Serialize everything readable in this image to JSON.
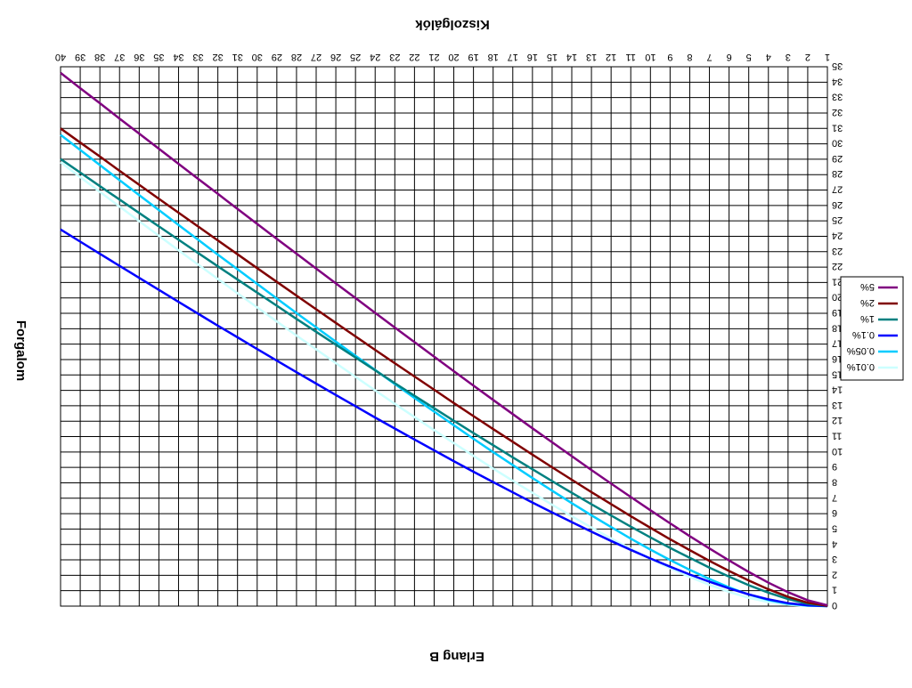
{
  "chart_data": {
    "type": "line",
    "title": "Erlang B",
    "xlabel": "Kiszolgálók",
    "ylabel": "Forgalom",
    "xlim": [
      1,
      40
    ],
    "ylim": [
      0,
      35
    ],
    "x_ticks": [
      1,
      2,
      3,
      4,
      5,
      6,
      7,
      8,
      9,
      10,
      11,
      12,
      13,
      14,
      15,
      16,
      17,
      18,
      19,
      20,
      21,
      22,
      23,
      24,
      25,
      26,
      27,
      28,
      29,
      30,
      31,
      32,
      33,
      34,
      35,
      36,
      37,
      38,
      39,
      40
    ],
    "y_ticks": [
      0,
      1,
      2,
      3,
      4,
      5,
      6,
      7,
      8,
      9,
      10,
      11,
      12,
      13,
      14,
      15,
      16,
      17,
      18,
      19,
      20,
      21,
      22,
      23,
      24,
      25,
      26,
      27,
      28,
      29,
      30,
      31,
      32,
      33,
      34,
      35
    ],
    "grid": true,
    "legend_position": "right",
    "orientation": "rotated 180 degrees",
    "x": [
      1,
      2,
      3,
      4,
      5,
      6,
      7,
      8,
      9,
      10,
      11,
      12,
      13,
      14,
      15,
      16,
      17,
      18,
      19,
      20,
      21,
      22,
      23,
      24,
      25,
      26,
      27,
      28,
      29,
      30,
      31,
      32,
      33,
      34,
      35,
      36,
      37,
      38,
      39,
      40
    ],
    "series": [
      {
        "name": "0.01%",
        "color": "#ccffff",
        "values": [
          0.0,
          0.01,
          0.09,
          0.26,
          0.54,
          0.92,
          1.38,
          1.89,
          2.46,
          3.07,
          3.72,
          4.39,
          5.1,
          5.83,
          6.58,
          7.35,
          8.13,
          8.93,
          9.75,
          10.58,
          11.42,
          12.27,
          13.13,
          14.0,
          14.88,
          15.77,
          16.66,
          17.56,
          18.47,
          19.38,
          20.3,
          21.23,
          22.16,
          23.09,
          24.03,
          24.98,
          25.93,
          26.88,
          27.84,
          28.8
        ]
      },
      {
        "name": "0.05%",
        "color": "#00ccff",
        "values": [
          0.0,
          0.03,
          0.15,
          0.39,
          0.75,
          1.22,
          1.76,
          2.35,
          2.99,
          3.67,
          4.38,
          5.13,
          5.89,
          6.68,
          7.49,
          8.31,
          9.15,
          10.0,
          10.86,
          11.74,
          12.62,
          13.51,
          14.41,
          15.32,
          16.24,
          17.16,
          18.09,
          19.02,
          19.96,
          20.91,
          21.86,
          22.81,
          23.77,
          24.73,
          25.7,
          26.67,
          27.64,
          28.62,
          29.6,
          30.58
        ]
      },
      {
        "name": "0.1%",
        "color": "#0000ff",
        "values": [
          0.0,
          0.05,
          0.19,
          0.44,
          0.76,
          1.15,
          1.58,
          2.05,
          2.56,
          3.09,
          3.65,
          4.23,
          4.83,
          5.45,
          6.08,
          6.72,
          7.38,
          8.05,
          8.72,
          9.41,
          10.11,
          10.81,
          11.52,
          12.24,
          12.97,
          13.7,
          14.44,
          15.18,
          15.93,
          16.68,
          17.44,
          18.2,
          18.97,
          19.74,
          20.52,
          21.3,
          22.08,
          22.86,
          23.65,
          24.44
        ]
      },
      {
        "name": "1%",
        "color": "#008080",
        "values": [
          0.01,
          0.15,
          0.46,
          0.87,
          1.36,
          1.91,
          2.5,
          3.13,
          3.78,
          4.46,
          5.16,
          5.88,
          6.61,
          7.35,
          8.11,
          8.88,
          9.65,
          10.44,
          11.23,
          12.03,
          12.84,
          13.65,
          14.47,
          15.3,
          16.13,
          16.96,
          17.8,
          18.64,
          19.49,
          20.34,
          21.19,
          22.05,
          22.91,
          23.77,
          24.64,
          25.51,
          26.38,
          27.25,
          28.13,
          29.01
        ]
      },
      {
        "name": "2%",
        "color": "#800000",
        "values": [
          0.02,
          0.22,
          0.6,
          1.09,
          1.66,
          2.28,
          2.94,
          3.63,
          4.34,
          5.08,
          5.84,
          6.62,
          7.4,
          8.2,
          9.01,
          9.83,
          10.66,
          11.49,
          12.33,
          13.18,
          14.04,
          14.9,
          15.76,
          16.63,
          17.5,
          18.38,
          19.26,
          20.15,
          21.04,
          21.93,
          22.83,
          23.73,
          24.63,
          25.53,
          26.43,
          27.34,
          28.25,
          29.17,
          30.08,
          31.0
        ]
      },
      {
        "name": "5%",
        "color": "#800080",
        "values": [
          0.05,
          0.38,
          0.9,
          1.52,
          2.22,
          2.96,
          3.74,
          4.54,
          5.37,
          6.22,
          7.08,
          7.95,
          8.83,
          9.73,
          10.63,
          11.54,
          12.46,
          13.38,
          14.31,
          15.25,
          16.19,
          17.13,
          18.08,
          19.03,
          19.99,
          20.94,
          21.9,
          22.87,
          23.83,
          24.8,
          25.77,
          26.75,
          27.72,
          28.7,
          29.68,
          30.66,
          31.64,
          32.63,
          33.61,
          34.6
        ]
      }
    ]
  }
}
